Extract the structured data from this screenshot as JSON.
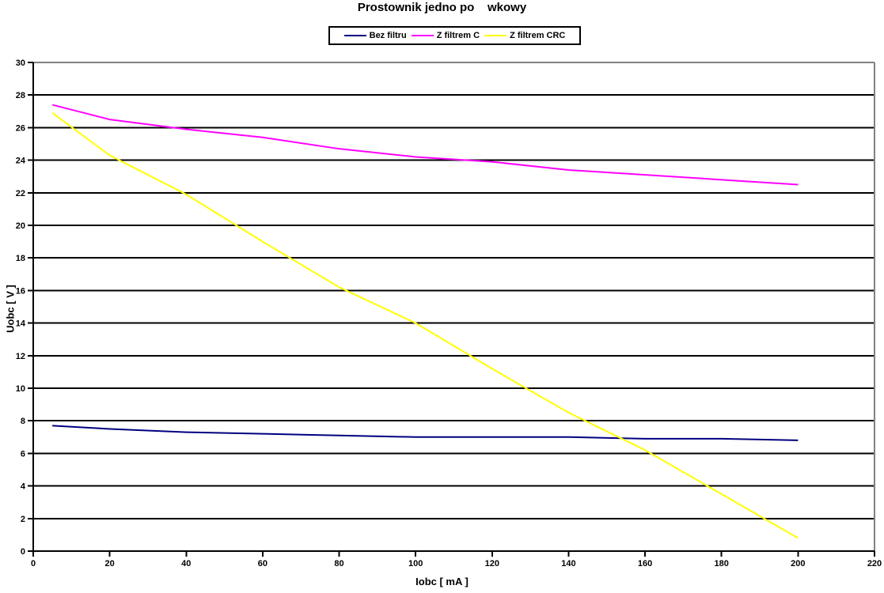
{
  "chart_data": {
    "type": "line",
    "title": "Prostownik jedno po    wkowy",
    "xlabel": "Iobc [ mA ]",
    "ylabel": "Uobc [ V ]",
    "x": [
      5,
      20,
      40,
      60,
      80,
      100,
      120,
      140,
      160,
      180,
      200
    ],
    "series": [
      {
        "name": "Bez filtru",
        "color": "#000080",
        "values": [
          7.7,
          7.5,
          7.3,
          7.2,
          7.1,
          7.0,
          7.0,
          7.0,
          6.9,
          6.9,
          6.8
        ]
      },
      {
        "name": "Z filtrem C",
        "color": "#FF00FF",
        "values": [
          27.4,
          26.5,
          25.9,
          25.4,
          24.7,
          24.2,
          23.9,
          23.4,
          23.1,
          22.8,
          22.5
        ]
      },
      {
        "name": "Z filtrem CRC",
        "color": "#FFFF00",
        "values": [
          26.9,
          24.3,
          21.9,
          19.0,
          16.2,
          14.0,
          11.2,
          8.5,
          6.2,
          3.5,
          0.8
        ]
      }
    ],
    "xlim": [
      0,
      220
    ],
    "ylim": [
      0,
      30
    ],
    "x_ticks": [
      0,
      20,
      40,
      60,
      80,
      100,
      120,
      140,
      160,
      180,
      200,
      220
    ],
    "y_ticks": [
      0,
      2,
      4,
      6,
      8,
      10,
      12,
      14,
      16,
      18,
      20,
      22,
      24,
      26,
      28,
      30
    ],
    "legend_position": "top",
    "grid": "horizontal",
    "colors": {
      "grid": "#000000",
      "axis": "#000000",
      "plot_border": "#808080",
      "background": "#FFFFFF",
      "text": "#000000"
    }
  }
}
